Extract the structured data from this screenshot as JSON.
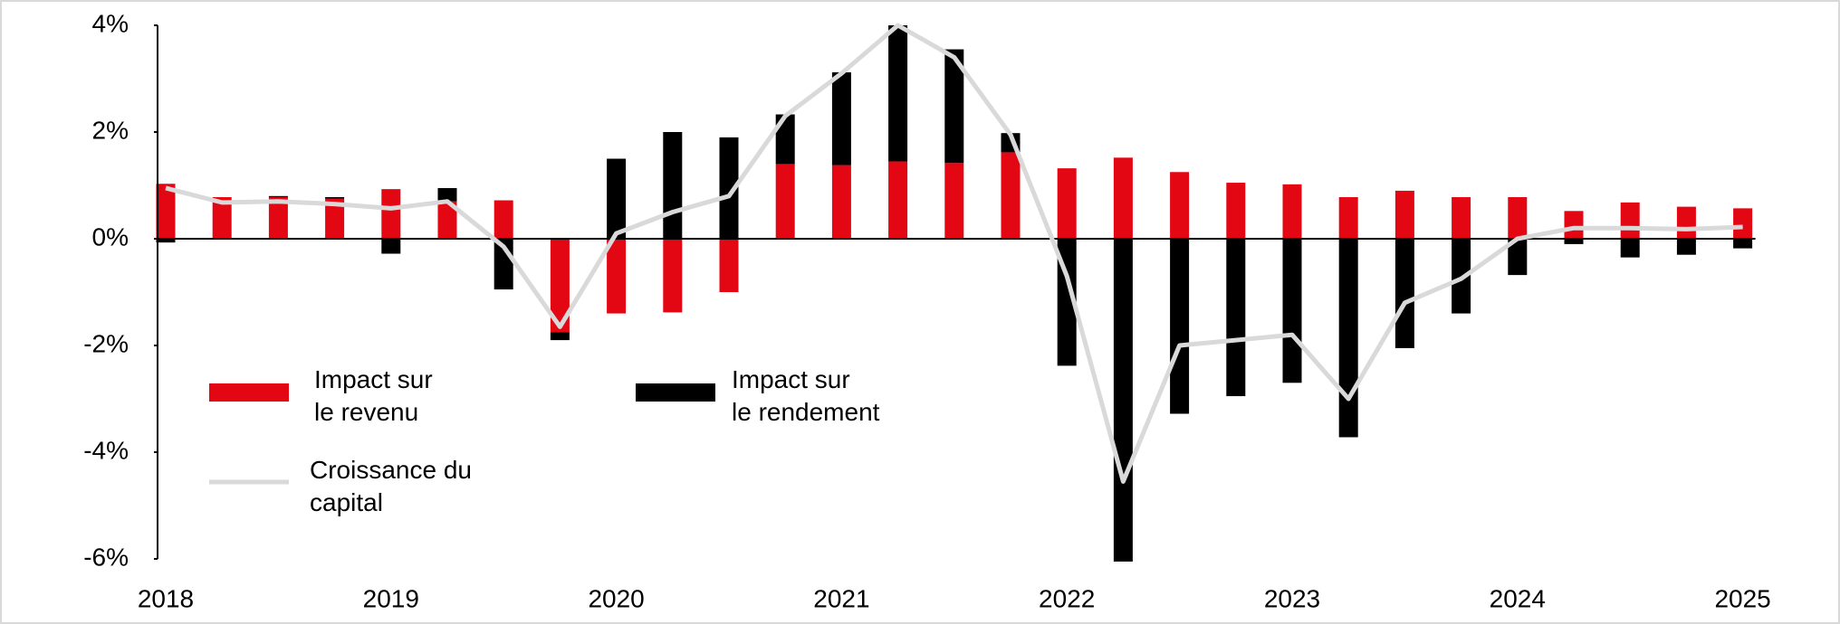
{
  "chart_data": {
    "type": "bar",
    "stacked": true,
    "categories": [
      "2018",
      null,
      null,
      null,
      "2019",
      null,
      null,
      null,
      "2020",
      null,
      null,
      null,
      "2021",
      null,
      null,
      null,
      "2022",
      null,
      null,
      null,
      "2023",
      null,
      null,
      null,
      "2024",
      null,
      null,
      null,
      "2025"
    ],
    "series": [
      {
        "name": "Impact sur\nle revenu",
        "type": "bar",
        "color": "#e30613",
        "values": [
          1.03,
          0.78,
          0.78,
          0.75,
          0.93,
          0.7,
          0.72,
          -1.75,
          -1.4,
          -1.38,
          -1.0,
          1.4,
          1.38,
          1.45,
          1.42,
          1.62,
          1.32,
          1.52,
          1.25,
          1.05,
          1.02,
          0.78,
          0.9,
          0.78,
          0.78,
          0.52,
          0.68,
          0.6,
          0.57
        ]
      },
      {
        "name": "Impact sur\nle rendement",
        "type": "bar",
        "color": "#000000",
        "values": [
          -0.07,
          0.0,
          0.02,
          0.03,
          -0.28,
          0.25,
          -0.95,
          -0.15,
          1.5,
          2.0,
          1.9,
          0.93,
          1.74,
          2.55,
          2.13,
          0.36,
          -2.38,
          -6.05,
          -3.28,
          -2.95,
          -2.7,
          -3.72,
          -2.05,
          -1.4,
          -0.68,
          -0.1,
          -0.35,
          -0.3,
          -0.18
        ]
      },
      {
        "name": "Croissance du\ncapital",
        "type": "line",
        "color": "#d9d9d9",
        "values": [
          0.95,
          0.68,
          0.7,
          0.65,
          0.57,
          0.7,
          -0.15,
          -1.65,
          0.1,
          0.5,
          0.8,
          2.3,
          3.1,
          4.0,
          3.4,
          1.95,
          -0.7,
          -4.55,
          -2.0,
          -1.9,
          -1.8,
          -3.0,
          -1.2,
          -0.75,
          0.0,
          0.2,
          0.2,
          0.18,
          0.22
        ]
      }
    ],
    "ylim": [
      -6,
      4
    ],
    "yticks": [
      {
        "value": -6,
        "label": "-6%"
      },
      {
        "value": -4,
        "label": "-4%"
      },
      {
        "value": -2,
        "label": "-2%"
      },
      {
        "value": 0,
        "label": "0%"
      },
      {
        "value": 2,
        "label": "2%"
      },
      {
        "value": 4,
        "label": "4%"
      }
    ],
    "grid": false
  }
}
